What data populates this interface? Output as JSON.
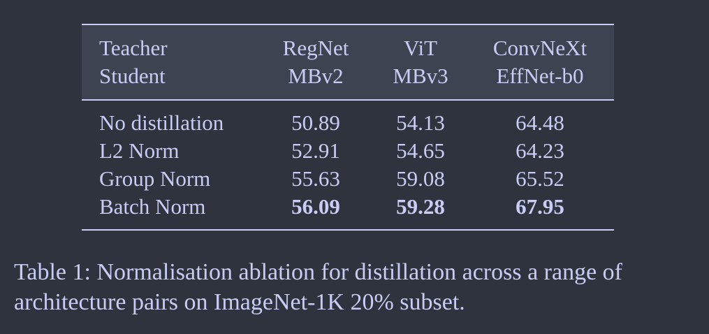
{
  "table": {
    "header": {
      "rowhead_line1": "Teacher",
      "rowhead_line2": "Student",
      "columns": [
        {
          "teacher": "RegNet",
          "student": "MBv2"
        },
        {
          "teacher": "ViT",
          "student": "MBv3"
        },
        {
          "teacher": "ConvNeXt",
          "student": "EffNet-b0"
        }
      ]
    },
    "rows": [
      {
        "label": "No distillation",
        "values": [
          "50.89",
          "54.13",
          "64.48"
        ]
      },
      {
        "label": "L2 Norm",
        "values": [
          "52.91",
          "54.65",
          "64.23"
        ]
      },
      {
        "label": "Group Norm",
        "values": [
          "55.63",
          "59.08",
          "65.52"
        ]
      },
      {
        "label": "Batch Norm",
        "values": [
          "56.09",
          "59.28",
          "67.95"
        ]
      }
    ]
  },
  "caption": "Table 1: Normalisation ablation for distillation across a range of architecture pairs on ImageNet-1K 20% subset."
}
